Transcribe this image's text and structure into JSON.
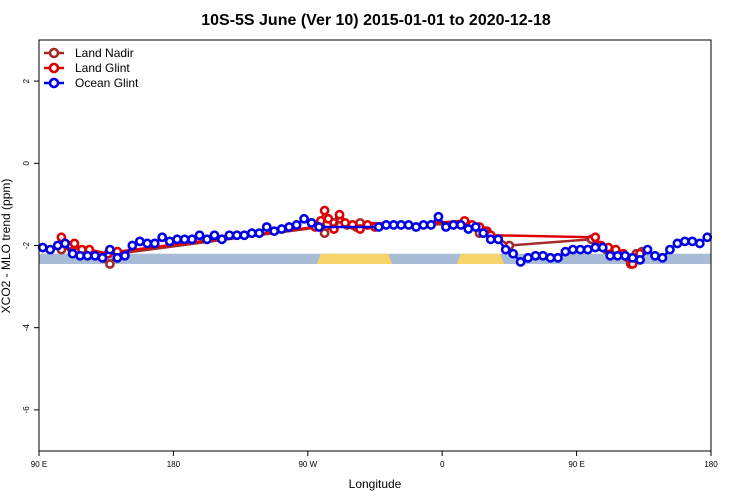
{
  "chart_data": {
    "type": "line",
    "title": "10S-5S June (Ver 10)   2015-01-01 to 2020-12-18",
    "xlabel": "Longitude",
    "ylabel": "XCO2 - MLO trend (ppm)",
    "xlim": [
      90,
      450
    ],
    "ylim": [
      -7,
      3
    ],
    "x_ticks": [
      {
        "value": 90,
        "label": "90 E"
      },
      {
        "value": 162,
        "label": "180"
      },
      {
        "value": 234,
        "label": "90 W"
      },
      {
        "value": 306,
        "label": "0"
      },
      {
        "value": 378,
        "label": "90 E"
      },
      {
        "value": 450,
        "label": "180"
      }
    ],
    "y_ticks": [
      {
        "value": 2,
        "label": "2"
      },
      {
        "value": 0,
        "label": "0"
      },
      {
        "value": -2,
        "label": "-2"
      },
      {
        "value": -4,
        "label": "-4"
      },
      {
        "value": -6,
        "label": "-6"
      }
    ],
    "grid": false,
    "legend_position": "top-left",
    "surface_band": {
      "y_range": [
        -2.45,
        -2.2
      ],
      "ocean_color": "#a9bcd6",
      "land_color": "#f7d46a",
      "land_segments": [
        [
          241,
          277
        ],
        [
          316,
          337
        ]
      ]
    },
    "series": [
      {
        "name": "Land Nadir",
        "color": "#a52a2a",
        "points": [
          [
            102,
            -2.1
          ],
          [
            107,
            -2.05
          ],
          [
            111,
            -2.15
          ],
          [
            115,
            -2.2
          ],
          [
            128,
            -2.45
          ],
          [
            132,
            -2.2
          ],
          [
            241,
            -1.55
          ],
          [
            243,
            -1.7
          ],
          [
            248,
            -1.45
          ],
          [
            251,
            -1.35
          ],
          [
            255,
            -1.5
          ],
          [
            260,
            -1.55
          ],
          [
            262,
            -1.45
          ],
          [
            320,
            -1.5
          ],
          [
            324,
            -1.55
          ],
          [
            326,
            -1.7
          ],
          [
            330,
            -1.65
          ],
          [
            342,
            -2.0
          ],
          [
            386,
            -1.85
          ],
          [
            390,
            -2.0
          ],
          [
            394,
            -2.1
          ],
          [
            398,
            -2.15
          ],
          [
            407,
            -2.45
          ],
          [
            410,
            -2.2
          ],
          [
            413,
            -2.15
          ]
        ]
      },
      {
        "name": "Land Glint",
        "color": "#e00000",
        "points": [
          [
            102,
            -1.8
          ],
          [
            106,
            -2.0
          ],
          [
            109,
            -1.95
          ],
          [
            113,
            -2.1
          ],
          [
            117,
            -2.1
          ],
          [
            127,
            -2.2
          ],
          [
            132,
            -2.15
          ],
          [
            238,
            -1.55
          ],
          [
            241,
            -1.4
          ],
          [
            243,
            -1.15
          ],
          [
            245,
            -1.35
          ],
          [
            248,
            -1.6
          ],
          [
            251,
            -1.25
          ],
          [
            254,
            -1.45
          ],
          [
            258,
            -1.5
          ],
          [
            262,
            -1.6
          ],
          [
            266,
            -1.5
          ],
          [
            270,
            -1.55
          ],
          [
            318,
            -1.4
          ],
          [
            322,
            -1.5
          ],
          [
            326,
            -1.55
          ],
          [
            329,
            -1.65
          ],
          [
            332,
            -1.75
          ],
          [
            388,
            -1.8
          ],
          [
            391,
            -2.0
          ],
          [
            395,
            -2.05
          ],
          [
            399,
            -2.1
          ],
          [
            403,
            -2.2
          ],
          [
            408,
            -2.45
          ],
          [
            412,
            -2.2
          ]
        ]
      },
      {
        "name": "Ocean Glint",
        "color": "#0000e6",
        "points": [
          [
            92,
            -2.05
          ],
          [
            96,
            -2.1
          ],
          [
            100,
            -2.0
          ],
          [
            104,
            -1.95
          ],
          [
            108,
            -2.2
          ],
          [
            112,
            -2.25
          ],
          [
            116,
            -2.25
          ],
          [
            120,
            -2.25
          ],
          [
            124,
            -2.3
          ],
          [
            128,
            -2.1
          ],
          [
            132,
            -2.3
          ],
          [
            136,
            -2.25
          ],
          [
            140,
            -2.0
          ],
          [
            144,
            -1.9
          ],
          [
            148,
            -1.95
          ],
          [
            152,
            -1.95
          ],
          [
            156,
            -1.8
          ],
          [
            160,
            -1.9
          ],
          [
            164,
            -1.85
          ],
          [
            168,
            -1.85
          ],
          [
            172,
            -1.85
          ],
          [
            176,
            -1.75
          ],
          [
            180,
            -1.85
          ],
          [
            184,
            -1.75
          ],
          [
            188,
            -1.85
          ],
          [
            192,
            -1.75
          ],
          [
            196,
            -1.75
          ],
          [
            200,
            -1.75
          ],
          [
            204,
            -1.7
          ],
          [
            208,
            -1.7
          ],
          [
            212,
            -1.55
          ],
          [
            216,
            -1.65
          ],
          [
            220,
            -1.6
          ],
          [
            224,
            -1.55
          ],
          [
            228,
            -1.5
          ],
          [
            232,
            -1.35
          ],
          [
            236,
            -1.45
          ],
          [
            240,
            -1.55
          ],
          [
            272,
            -1.55
          ],
          [
            276,
            -1.5
          ],
          [
            280,
            -1.5
          ],
          [
            284,
            -1.5
          ],
          [
            288,
            -1.5
          ],
          [
            292,
            -1.55
          ],
          [
            296,
            -1.5
          ],
          [
            300,
            -1.5
          ],
          [
            304,
            -1.3
          ],
          [
            308,
            -1.55
          ],
          [
            312,
            -1.5
          ],
          [
            316,
            -1.5
          ],
          [
            320,
            -1.6
          ],
          [
            324,
            -1.55
          ],
          [
            328,
            -1.7
          ],
          [
            332,
            -1.85
          ],
          [
            336,
            -1.85
          ],
          [
            340,
            -2.1
          ],
          [
            344,
            -2.2
          ],
          [
            348,
            -2.4
          ],
          [
            352,
            -2.3
          ],
          [
            356,
            -2.25
          ],
          [
            360,
            -2.25
          ],
          [
            364,
            -2.3
          ],
          [
            368,
            -2.3
          ],
          [
            372,
            -2.15
          ],
          [
            376,
            -2.1
          ],
          [
            380,
            -2.1
          ],
          [
            384,
            -2.1
          ],
          [
            388,
            -2.05
          ],
          [
            392,
            -2.05
          ],
          [
            396,
            -2.25
          ],
          [
            400,
            -2.25
          ],
          [
            404,
            -2.25
          ],
          [
            408,
            -2.3
          ],
          [
            412,
            -2.35
          ],
          [
            416,
            -2.1
          ],
          [
            420,
            -2.25
          ],
          [
            424,
            -2.3
          ],
          [
            428,
            -2.1
          ],
          [
            432,
            -1.95
          ],
          [
            436,
            -1.9
          ],
          [
            440,
            -1.9
          ],
          [
            444,
            -1.95
          ],
          [
            448,
            -1.8
          ]
        ]
      }
    ]
  }
}
